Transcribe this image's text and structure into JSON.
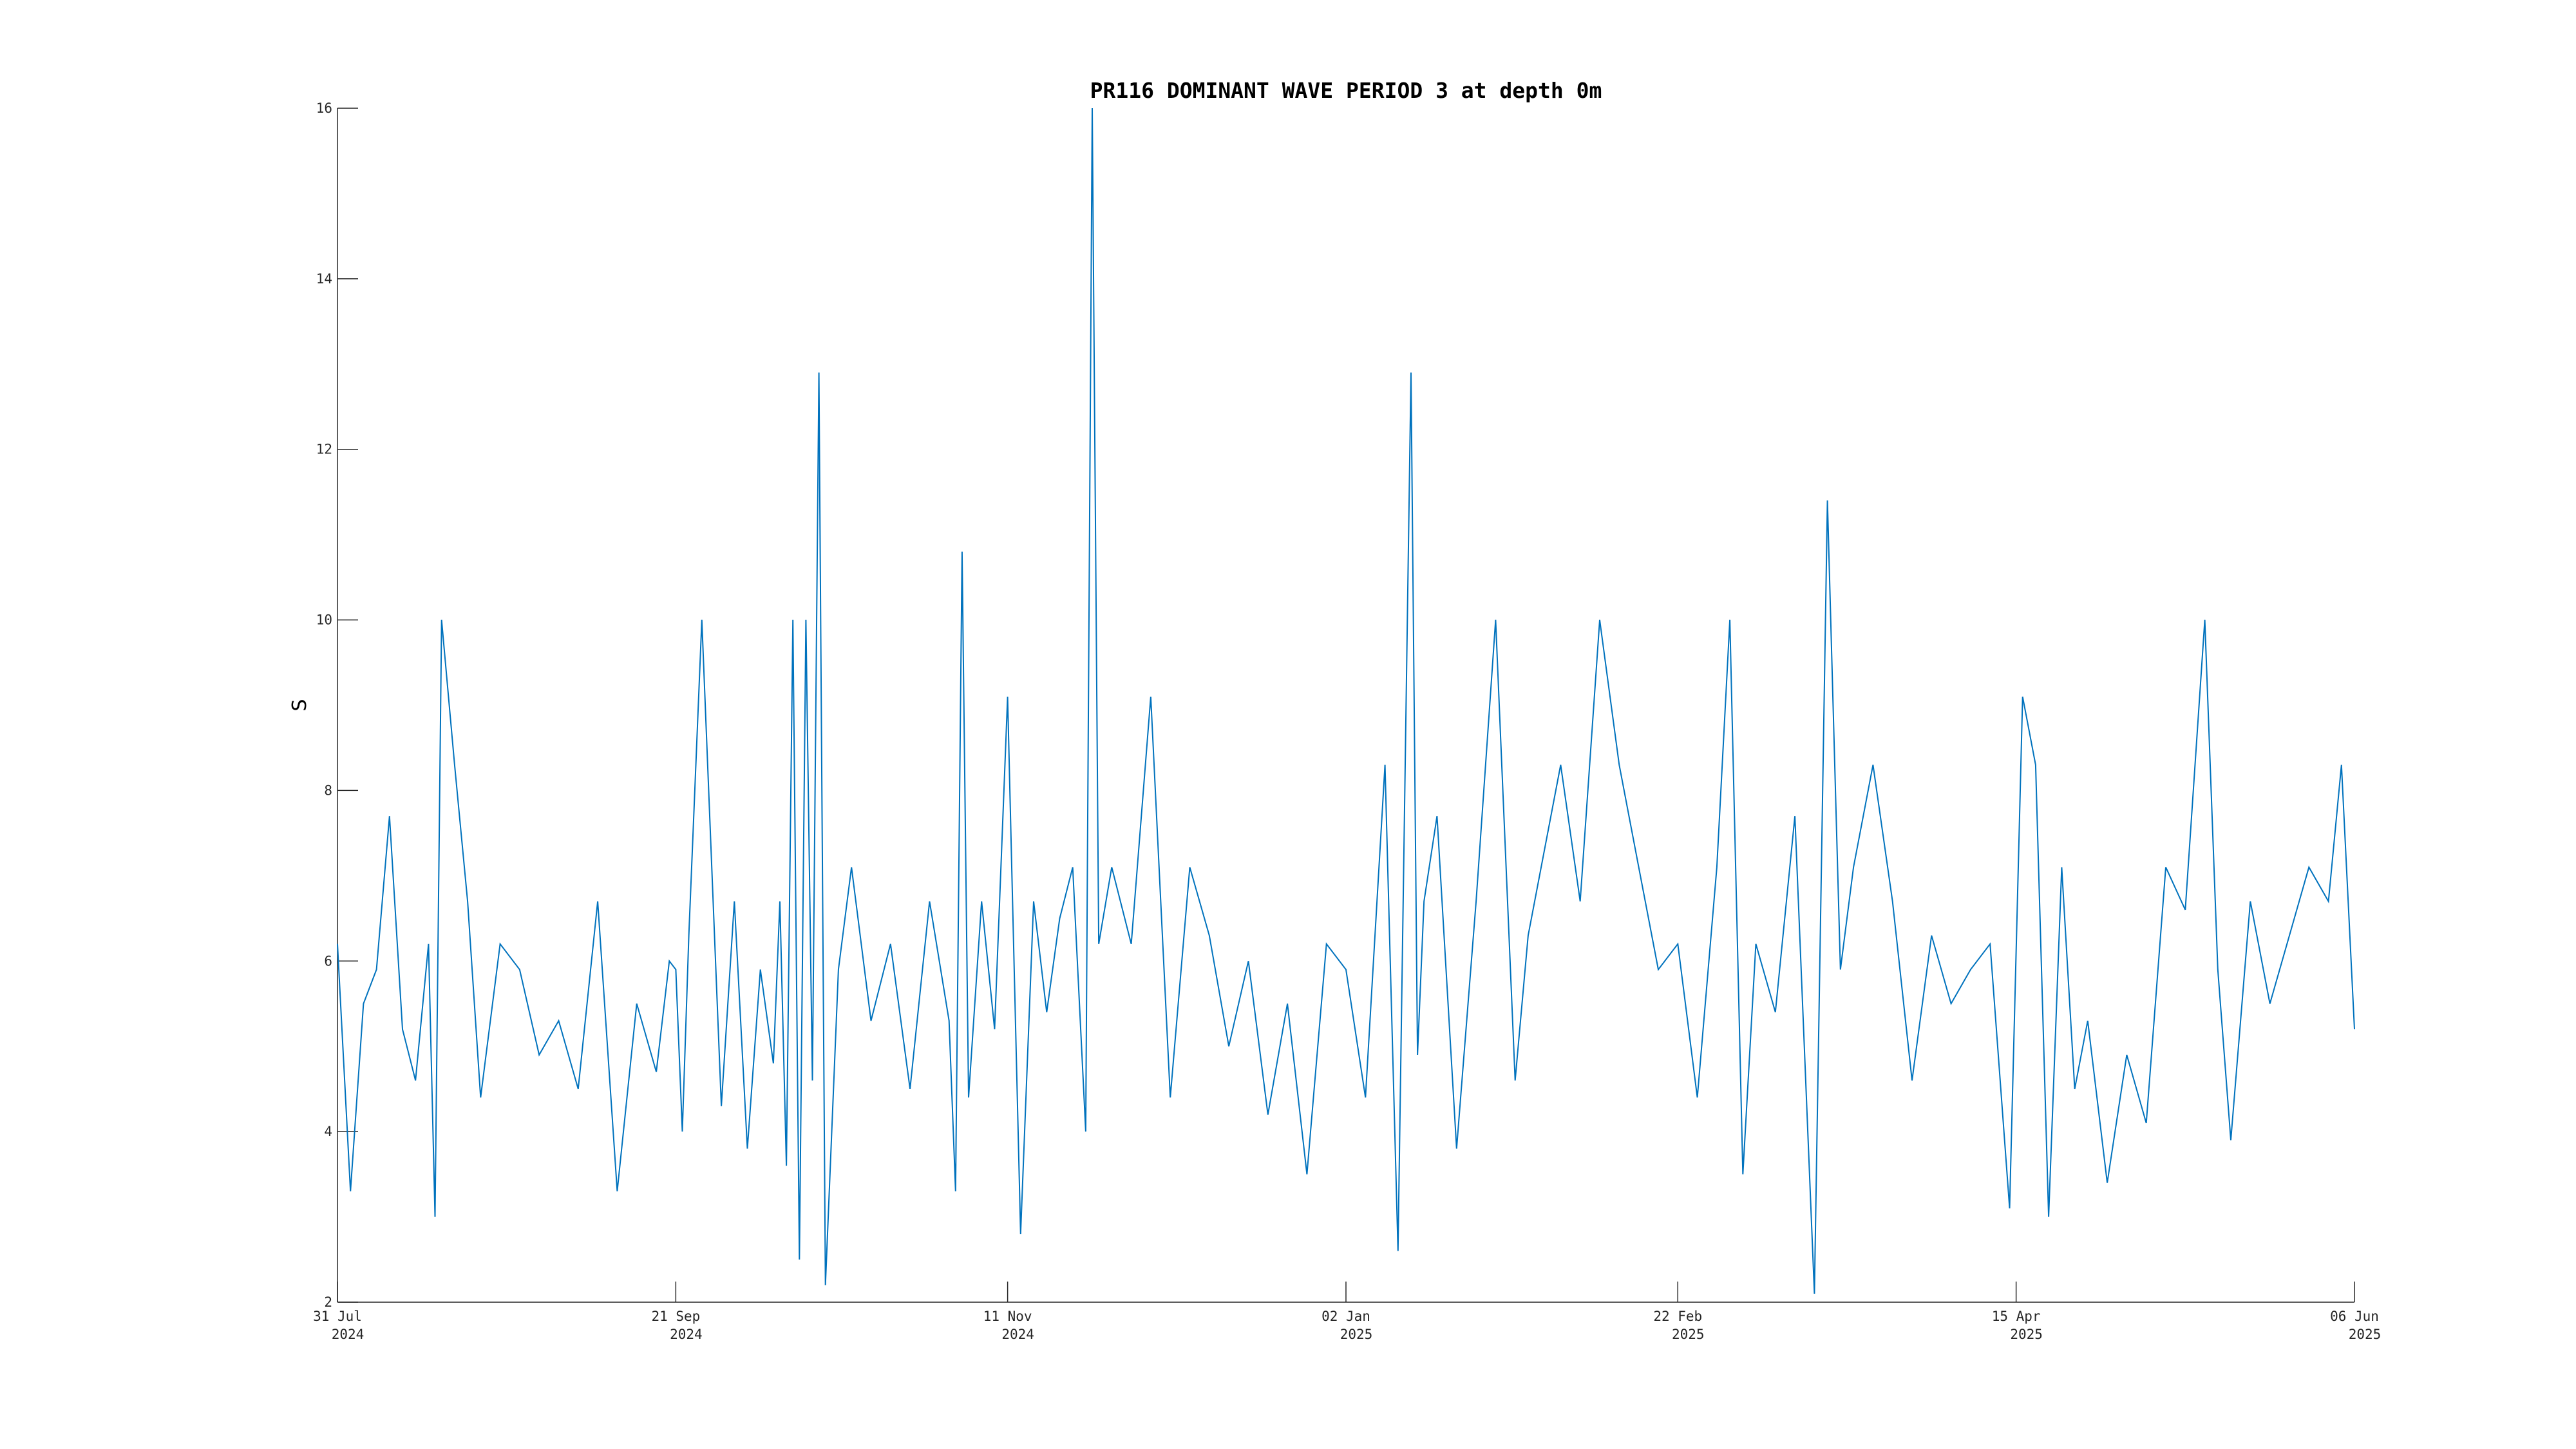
{
  "chart_data": {
    "type": "line",
    "title": "PR116 DOMINANT WAVE PERIOD 3 at depth 0m",
    "ylabel": "S",
    "xlabel": "",
    "ylim": [
      2,
      16
    ],
    "xlim": [
      "2024-07-31",
      "2025-06-06"
    ],
    "y_ticks": [
      2,
      4,
      6,
      8,
      10,
      12,
      14,
      16
    ],
    "x_ticks": [
      {
        "date": "2024-07-31",
        "line1": "31 Jul",
        "line2": "2024"
      },
      {
        "date": "2024-09-21",
        "line1": "21 Sep",
        "line2": "2024"
      },
      {
        "date": "2024-11-11",
        "line1": "11 Nov",
        "line2": "2024"
      },
      {
        "date": "2025-01-02",
        "line1": "02 Jan",
        "line2": "2025"
      },
      {
        "date": "2025-02-22",
        "line1": "22 Feb",
        "line2": "2025"
      },
      {
        "date": "2025-04-15",
        "line1": "15 Apr",
        "line2": "2025"
      },
      {
        "date": "2025-06-06",
        "line1": "06 Jun",
        "line2": "2025"
      }
    ],
    "grid": false,
    "color": "#0072BD",
    "series": [
      {
        "x": [
          "2024-07-31",
          "2024-08-02",
          "2024-08-04",
          "2024-08-06",
          "2024-08-08",
          "2024-08-10",
          "2024-08-12",
          "2024-08-14",
          "2024-08-15",
          "2024-08-16",
          "2024-08-18",
          "2024-08-20",
          "2024-08-22",
          "2024-08-25",
          "2024-08-28",
          "2024-08-31",
          "2024-09-03",
          "2024-09-06",
          "2024-09-09",
          "2024-09-12",
          "2024-09-15",
          "2024-09-18",
          "2024-09-20",
          "2024-09-21",
          "2024-09-22",
          "2024-09-23",
          "2024-09-25",
          "2024-09-28",
          "2024-09-30",
          "2024-10-02",
          "2024-10-04",
          "2024-10-06",
          "2024-10-07",
          "2024-10-08",
          "2024-10-09",
          "2024-10-10",
          "2024-10-11",
          "2024-10-12",
          "2024-10-13",
          "2024-10-14",
          "2024-10-16",
          "2024-10-18",
          "2024-10-21",
          "2024-10-24",
          "2024-10-27",
          "2024-10-30",
          "2024-11-02",
          "2024-11-03",
          "2024-11-04",
          "2024-11-05",
          "2024-11-07",
          "2024-11-09",
          "2024-11-11",
          "2024-11-13",
          "2024-11-15",
          "2024-11-17",
          "2024-11-19",
          "2024-11-21",
          "2024-11-23",
          "2024-11-24",
          "2024-11-25",
          "2024-11-27",
          "2024-11-30",
          "2024-12-03",
          "2024-12-06",
          "2024-12-09",
          "2024-12-12",
          "2024-12-15",
          "2024-12-18",
          "2024-12-21",
          "2024-12-24",
          "2024-12-27",
          "2024-12-30",
          "2025-01-02",
          "2025-01-05",
          "2025-01-08",
          "2025-01-10",
          "2025-01-12",
          "2025-01-13",
          "2025-01-14",
          "2025-01-16",
          "2025-01-19",
          "2025-01-22",
          "2025-01-25",
          "2025-01-28",
          "2025-01-30",
          "2025-02-01",
          "2025-02-04",
          "2025-02-07",
          "2025-02-10",
          "2025-02-13",
          "2025-02-16",
          "2025-02-19",
          "2025-02-22",
          "2025-02-25",
          "2025-02-28",
          "2025-03-02",
          "2025-03-04",
          "2025-03-06",
          "2025-03-09",
          "2025-03-12",
          "2025-03-15",
          "2025-03-17",
          "2025-03-19",
          "2025-03-21",
          "2025-03-24",
          "2025-03-27",
          "2025-03-30",
          "2025-04-02",
          "2025-04-05",
          "2025-04-08",
          "2025-04-11",
          "2025-04-14",
          "2025-04-16",
          "2025-04-18",
          "2025-04-20",
          "2025-04-22",
          "2025-04-24",
          "2025-04-26",
          "2025-04-29",
          "2025-05-02",
          "2025-05-05",
          "2025-05-08",
          "2025-05-11",
          "2025-05-14",
          "2025-05-16",
          "2025-05-18",
          "2025-05-21",
          "2025-05-24",
          "2025-05-27",
          "2025-05-30",
          "2025-06-02",
          "2025-06-04",
          "2025-06-06"
        ],
        "y": [
          6.2,
          3.3,
          5.5,
          5.9,
          7.7,
          5.2,
          4.6,
          6.2,
          3.0,
          10.0,
          8.3,
          6.7,
          4.4,
          6.2,
          5.9,
          4.9,
          5.3,
          4.5,
          6.7,
          3.3,
          5.5,
          4.7,
          6.0,
          5.9,
          4.0,
          6.3,
          10.0,
          4.3,
          6.7,
          3.8,
          5.9,
          4.8,
          6.7,
          3.6,
          10.0,
          2.5,
          10.0,
          4.6,
          12.9,
          2.2,
          5.9,
          7.1,
          5.3,
          6.2,
          4.5,
          6.7,
          5.3,
          3.3,
          10.8,
          4.4,
          6.7,
          5.2,
          9.1,
          2.8,
          6.7,
          5.4,
          6.5,
          7.1,
          4.0,
          16.0,
          6.2,
          7.1,
          6.2,
          9.1,
          4.4,
          7.1,
          6.3,
          5.0,
          6.0,
          4.2,
          5.5,
          3.5,
          6.2,
          5.9,
          4.4,
          8.3,
          2.6,
          12.9,
          4.9,
          6.7,
          7.7,
          3.8,
          6.7,
          10.0,
          4.6,
          6.3,
          7.1,
          8.3,
          6.7,
          10.0,
          8.3,
          7.1,
          5.9,
          6.2,
          4.4,
          7.1,
          10.0,
          3.5,
          6.2,
          5.4,
          7.7,
          2.1,
          11.4,
          5.9,
          7.1,
          8.3,
          6.7,
          4.6,
          6.3,
          5.5,
          5.9,
          6.2,
          3.1,
          9.1,
          8.3,
          3.0,
          7.1,
          4.5,
          5.3,
          3.4,
          4.9,
          4.1,
          7.1,
          6.6,
          10.0,
          5.9,
          3.9,
          6.7,
          5.5,
          6.3,
          7.1,
          6.7,
          8.3,
          5.2
        ]
      }
    ]
  }
}
